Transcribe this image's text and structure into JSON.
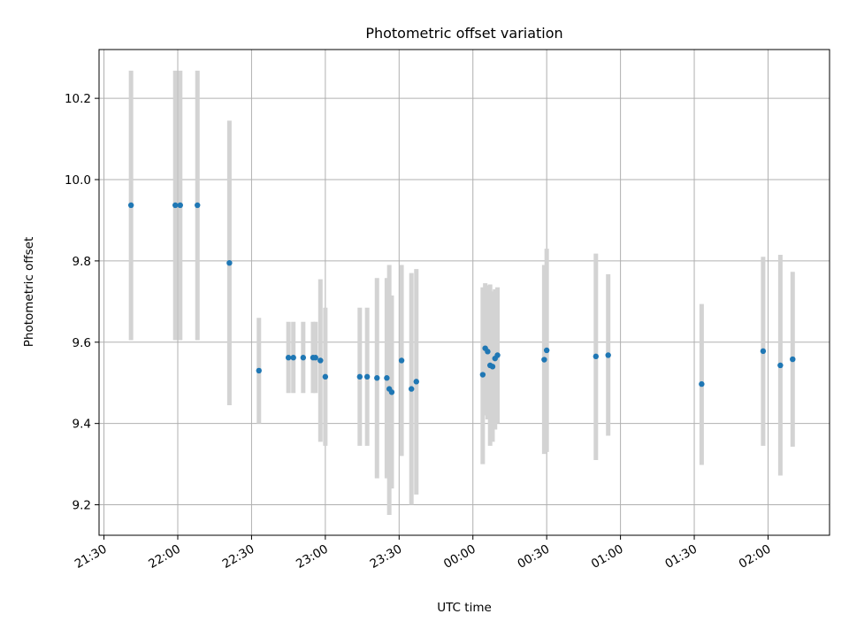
{
  "chart_data": {
    "type": "scatter",
    "title": "Photometric offset variation",
    "xlabel": "UTC time",
    "ylabel": "Photometric offset",
    "xlim": [
      "21:28",
      "02:25"
    ],
    "ylim": [
      9.125,
      10.32
    ],
    "x_ticks": [
      "21:30",
      "22:00",
      "22:30",
      "23:00",
      "23:30",
      "00:00",
      "00:30",
      "01:00",
      "01:30",
      "02:00"
    ],
    "y_ticks": [
      "9.2",
      "9.4",
      "9.6",
      "9.8",
      "10.0",
      "10.2"
    ],
    "grid": true,
    "marker_color": "#1f77b4",
    "errorbar_color": "#d3d3d3",
    "points": [
      {
        "t": "21:41",
        "y": 9.937,
        "lo": 9.605,
        "hi": 10.268
      },
      {
        "t": "21:59",
        "y": 9.937,
        "lo": 9.605,
        "hi": 10.268
      },
      {
        "t": "22:01",
        "y": 9.937,
        "lo": 9.605,
        "hi": 10.268
      },
      {
        "t": "22:08",
        "y": 9.937,
        "lo": 9.605,
        "hi": 10.268
      },
      {
        "t": "22:21",
        "y": 9.795,
        "lo": 9.445,
        "hi": 10.145
      },
      {
        "t": "22:33",
        "y": 9.53,
        "lo": 9.4,
        "hi": 9.66
      },
      {
        "t": "22:45",
        "y": 9.562,
        "lo": 9.475,
        "hi": 9.65
      },
      {
        "t": "22:47",
        "y": 9.562,
        "lo": 9.475,
        "hi": 9.65
      },
      {
        "t": "22:51",
        "y": 9.562,
        "lo": 9.475,
        "hi": 9.65
      },
      {
        "t": "22:55",
        "y": 9.562,
        "lo": 9.475,
        "hi": 9.65
      },
      {
        "t": "22:56",
        "y": 9.562,
        "lo": 9.475,
        "hi": 9.65
      },
      {
        "t": "22:58",
        "y": 9.555,
        "lo": 9.355,
        "hi": 9.755
      },
      {
        "t": "23:00",
        "y": 9.515,
        "lo": 9.345,
        "hi": 9.685
      },
      {
        "t": "23:14",
        "y": 9.515,
        "lo": 9.345,
        "hi": 9.685
      },
      {
        "t": "23:17",
        "y": 9.515,
        "lo": 9.345,
        "hi": 9.685
      },
      {
        "t": "23:21",
        "y": 9.512,
        "lo": 9.265,
        "hi": 9.758
      },
      {
        "t": "23:25",
        "y": 9.512,
        "lo": 9.265,
        "hi": 9.758
      },
      {
        "t": "23:26",
        "y": 9.485,
        "lo": 9.175,
        "hi": 9.79
      },
      {
        "t": "23:27",
        "y": 9.477,
        "lo": 9.24,
        "hi": 9.715
      },
      {
        "t": "23:31",
        "y": 9.555,
        "lo": 9.32,
        "hi": 9.79
      },
      {
        "t": "23:35",
        "y": 9.485,
        "lo": 9.2,
        "hi": 9.77
      },
      {
        "t": "23:37",
        "y": 9.503,
        "lo": 9.225,
        "hi": 9.78
      },
      {
        "t": "00:04",
        "y": 9.52,
        "lo": 9.3,
        "hi": 9.735
      },
      {
        "t": "00:05",
        "y": 9.585,
        "lo": 9.42,
        "hi": 9.745
      },
      {
        "t": "00:06",
        "y": 9.577,
        "lo": 9.41,
        "hi": 9.74
      },
      {
        "t": "00:07",
        "y": 9.543,
        "lo": 9.345,
        "hi": 9.742
      },
      {
        "t": "00:08",
        "y": 9.54,
        "lo": 9.355,
        "hi": 9.725
      },
      {
        "t": "00:09",
        "y": 9.56,
        "lo": 9.385,
        "hi": 9.73
      },
      {
        "t": "00:10",
        "y": 9.568,
        "lo": 9.4,
        "hi": 9.735
      },
      {
        "t": "00:29",
        "y": 9.557,
        "lo": 9.325,
        "hi": 9.79
      },
      {
        "t": "00:30",
        "y": 9.58,
        "lo": 9.33,
        "hi": 9.83
      },
      {
        "t": "00:50",
        "y": 9.565,
        "lo": 9.31,
        "hi": 9.818
      },
      {
        "t": "00:55",
        "y": 9.568,
        "lo": 9.37,
        "hi": 9.767
      },
      {
        "t": "01:33",
        "y": 9.497,
        "lo": 9.298,
        "hi": 9.694
      },
      {
        "t": "01:58",
        "y": 9.578,
        "lo": 9.345,
        "hi": 9.81
      },
      {
        "t": "02:05",
        "y": 9.543,
        "lo": 9.272,
        "hi": 9.815
      },
      {
        "t": "02:10",
        "y": 9.558,
        "lo": 9.343,
        "hi": 9.773
      }
    ]
  }
}
